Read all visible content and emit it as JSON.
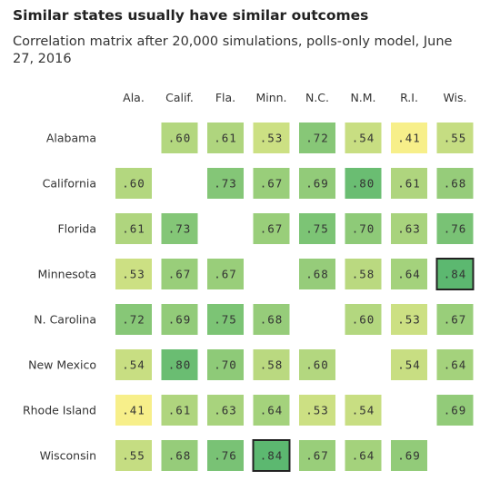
{
  "chart_data": {
    "type": "heatmap",
    "title": "Similar states usually have similar outcomes",
    "subtitle": "Correlation matrix after 20,000 simulations, polls-only model, June 27, 2016",
    "columns": [
      "Ala.",
      "Calif.",
      "Fla.",
      "Minn.",
      "N.C.",
      "N.M.",
      "R.I.",
      "Wis."
    ],
    "rows": [
      "Alabama",
      "California",
      "Florida",
      "Minnesota",
      "N. Carolina",
      "New Mexico",
      "Rhode Island",
      "Wisconsin"
    ],
    "values": [
      [
        null,
        0.6,
        0.61,
        0.53,
        0.72,
        0.54,
        0.41,
        0.55
      ],
      [
        0.6,
        null,
        0.73,
        0.67,
        0.69,
        0.8,
        0.61,
        0.68
      ],
      [
        0.61,
        0.73,
        null,
        0.67,
        0.75,
        0.7,
        0.63,
        0.76
      ],
      [
        0.53,
        0.67,
        0.67,
        null,
        0.68,
        0.58,
        0.64,
        0.84
      ],
      [
        0.72,
        0.69,
        0.75,
        0.68,
        null,
        0.6,
        0.53,
        0.67
      ],
      [
        0.54,
        0.8,
        0.7,
        0.58,
        0.6,
        null,
        0.54,
        0.64
      ],
      [
        0.41,
        0.61,
        0.63,
        0.64,
        0.53,
        0.54,
        null,
        0.69
      ],
      [
        0.55,
        0.68,
        0.76,
        0.84,
        0.67,
        0.64,
        0.69,
        null
      ]
    ],
    "highlighted_pairs": [
      [
        "Minnesota",
        "Wisconsin"
      ],
      [
        "Wisconsin",
        "Minnesota"
      ]
    ],
    "color_scale": {
      "low_color": "#f7ef8a",
      "high_color": "#5cb870",
      "low_value": 0.41,
      "high_value": 0.84
    },
    "highlight_color": "#222222"
  }
}
